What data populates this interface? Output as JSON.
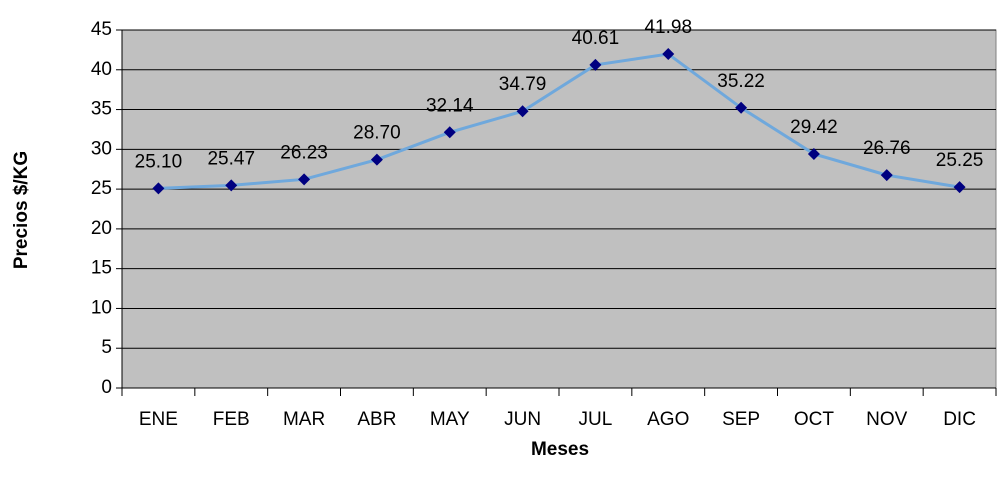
{
  "chart_data": {
    "type": "line",
    "x_label": "Meses",
    "y_label": "Precios $/KG",
    "categories": [
      "ENE",
      "FEB",
      "MAR",
      "ABR",
      "MAY",
      "JUN",
      "JUL",
      "AGO",
      "SEP",
      "OCT",
      "NOV",
      "DIC"
    ],
    "values": [
      25.1,
      25.47,
      26.23,
      28.7,
      32.14,
      34.79,
      40.61,
      41.98,
      35.22,
      29.42,
      26.76,
      25.25
    ],
    "value_labels": [
      "25.10",
      "25.47",
      "26.23",
      "28.70",
      "32.14",
      "34.79",
      "40.61",
      "41.98",
      "35.22",
      "29.42",
      "26.76",
      "25.25"
    ],
    "color": "#6fa8dc",
    "marker_color": "#000080",
    "plot_background": "#c0c0c0",
    "ylim": [
      0,
      45
    ],
    "yticks": [
      0,
      5,
      10,
      15,
      20,
      25,
      30,
      35,
      40,
      45
    ],
    "grid": true
  }
}
